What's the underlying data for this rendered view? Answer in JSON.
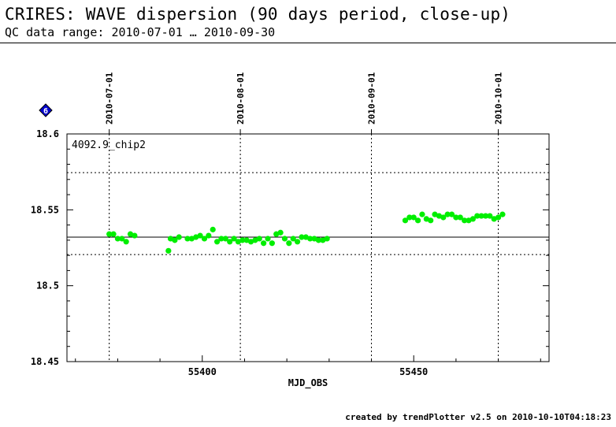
{
  "header": {
    "title": "CRIRES: WAVE dispersion (90 days period, close-up)",
    "subtitle": "QC data range: 2010-07-01 … 2010-09-30"
  },
  "footer": {
    "text": "created by trendPlotter v2.5 on 2010-10-10T04:18:23"
  },
  "marker": {
    "label": "6",
    "color": "#0000cc"
  },
  "chart_data": {
    "type": "scatter",
    "title": "",
    "series_label": "4092.9_chip2",
    "xlabel": "MJD_OBS",
    "ylabel": "",
    "xlim": [
      55368,
      55482
    ],
    "ylim": [
      18.45,
      18.6
    ],
    "x_ticks": [
      55400,
      55450
    ],
    "y_ticks": [
      18.45,
      18.5,
      18.55,
      18.6
    ],
    "y_tick_labels": [
      "18.45",
      "18.5",
      "18.55",
      "18.6"
    ],
    "date_markers": [
      {
        "label": "2010-07-01",
        "x": 55378
      },
      {
        "label": "2010-08-01",
        "x": 55409
      },
      {
        "label": "2010-09-01",
        "x": 55440
      },
      {
        "label": "2010-10-01",
        "x": 55470
      }
    ],
    "mean_line": 18.532,
    "band_lines": [
      18.5205,
      18.5745
    ],
    "point_color": "#00ee00",
    "points": [
      [
        55378.0,
        18.534
      ],
      [
        55379.0,
        18.534
      ],
      [
        55380.0,
        18.531
      ],
      [
        55381.0,
        18.531
      ],
      [
        55382.0,
        18.529
      ],
      [
        55383.0,
        18.534
      ],
      [
        55384.0,
        18.533
      ],
      [
        55392.0,
        18.523
      ],
      [
        55392.5,
        18.531
      ],
      [
        55393.5,
        18.53
      ],
      [
        55394.5,
        18.532
      ],
      [
        55396.5,
        18.531
      ],
      [
        55397.5,
        18.531
      ],
      [
        55398.5,
        18.532
      ],
      [
        55399.5,
        18.533
      ],
      [
        55400.5,
        18.531
      ],
      [
        55401.5,
        18.533
      ],
      [
        55402.5,
        18.537
      ],
      [
        55403.5,
        18.529
      ],
      [
        55404.5,
        18.531
      ],
      [
        55405.5,
        18.531
      ],
      [
        55406.5,
        18.529
      ],
      [
        55407.5,
        18.531
      ],
      [
        55408.5,
        18.529
      ],
      [
        55409.5,
        18.53
      ],
      [
        55410.5,
        18.53
      ],
      [
        55411.5,
        18.529
      ],
      [
        55412.5,
        18.53
      ],
      [
        55413.5,
        18.531
      ],
      [
        55414.5,
        18.528
      ],
      [
        55415.5,
        18.531
      ],
      [
        55416.5,
        18.528
      ],
      [
        55417.5,
        18.534
      ],
      [
        55418.5,
        18.535
      ],
      [
        55419.5,
        18.531
      ],
      [
        55420.5,
        18.528
      ],
      [
        55421.5,
        18.531
      ],
      [
        55422.5,
        18.529
      ],
      [
        55423.5,
        18.532
      ],
      [
        55424.5,
        18.532
      ],
      [
        55425.5,
        18.531
      ],
      [
        55426.5,
        18.531
      ],
      [
        55427.5,
        18.53
      ],
      [
        55428.5,
        18.53
      ],
      [
        55429.5,
        18.531
      ],
      [
        55448.0,
        18.543
      ],
      [
        55449.0,
        18.545
      ],
      [
        55450.0,
        18.545
      ],
      [
        55451.0,
        18.543
      ],
      [
        55452.0,
        18.547
      ],
      [
        55453.0,
        18.544
      ],
      [
        55454.0,
        18.543
      ],
      [
        55455.0,
        18.547
      ],
      [
        55456.0,
        18.546
      ],
      [
        55457.0,
        18.545
      ],
      [
        55458.0,
        18.547
      ],
      [
        55459.0,
        18.547
      ],
      [
        55460.0,
        18.545
      ],
      [
        55461.0,
        18.545
      ],
      [
        55462.0,
        18.543
      ],
      [
        55463.0,
        18.543
      ],
      [
        55464.0,
        18.544
      ],
      [
        55465.0,
        18.546
      ],
      [
        55466.0,
        18.546
      ],
      [
        55467.0,
        18.546
      ],
      [
        55468.0,
        18.546
      ],
      [
        55469.0,
        18.544
      ],
      [
        55470.0,
        18.545
      ],
      [
        55471.0,
        18.547
      ]
    ]
  }
}
